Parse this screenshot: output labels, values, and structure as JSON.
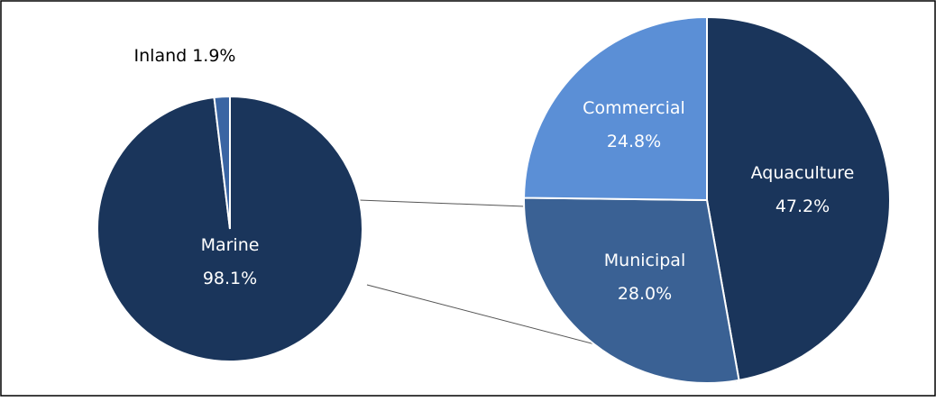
{
  "chart_data": [
    {
      "type": "pie",
      "categories": [
        "Marine",
        "Inland"
      ],
      "values": [
        98.1,
        1.9
      ],
      "value_labels": [
        "98.1%",
        "1.9%"
      ],
      "colors": [
        "#1a355b",
        "#3a65a3"
      ]
    },
    {
      "type": "pie",
      "categories": [
        "Aquaculture",
        "Municipal",
        "Commercial"
      ],
      "values": [
        47.2,
        28.0,
        24.8
      ],
      "value_labels": [
        "47.2%",
        "28.0%",
        "24.8%"
      ],
      "colors": [
        "#1a355b",
        "#3a6194",
        "#5b8fd6"
      ]
    }
  ]
}
